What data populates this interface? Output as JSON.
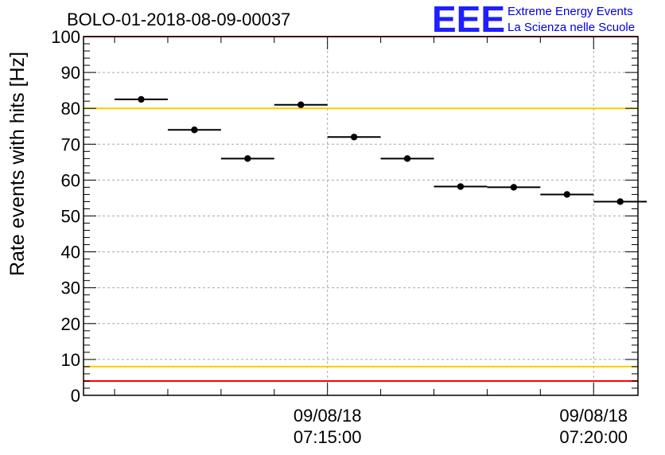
{
  "logo": {
    "mark": "EEE",
    "line1": "Extreme Energy Events",
    "line2": "La Scienza nelle Scuole",
    "color": "#1f1fff"
  },
  "chart_data": {
    "type": "scatter",
    "title": "BOLO-01-2018-08-09-00037",
    "xlabel": "",
    "ylabel": "Rate events with hits [Hz]",
    "ylim": [
      0,
      100
    ],
    "yticks": [
      0,
      10,
      20,
      30,
      40,
      50,
      60,
      70,
      80,
      90,
      100
    ],
    "grid": true,
    "x_tick_labels": [
      {
        "date": "09/08/18",
        "time": "07:15:00"
      },
      {
        "date": "09/08/18",
        "time": "07:20:00"
      }
    ],
    "series": [
      {
        "points": [
          {
            "t_start": "07:11:00",
            "t_end": "07:12:00",
            "y": 82.5,
            "err": 0.6
          },
          {
            "t_start": "07:12:00",
            "t_end": "07:13:00",
            "y": 74.0,
            "err": 0.5
          },
          {
            "t_start": "07:13:00",
            "t_end": "07:14:00",
            "y": 66.0,
            "err": 0.5
          },
          {
            "t_start": "07:14:00",
            "t_end": "07:15:00",
            "y": 81.0,
            "err": 0.6
          },
          {
            "t_start": "07:15:00",
            "t_end": "07:16:00",
            "y": 72.0,
            "err": 0.5
          },
          {
            "t_start": "07:16:00",
            "t_end": "07:17:00",
            "y": 66.0,
            "err": 0.5
          },
          {
            "t_start": "07:17:00",
            "t_end": "07:18:00",
            "y": 58.2,
            "err": 0.5
          },
          {
            "t_start": "07:18:00",
            "t_end": "07:19:00",
            "y": 58.0,
            "err": 0.5
          },
          {
            "t_start": "07:19:00",
            "t_end": "07:20:00",
            "y": 56.0,
            "err": 0.5
          },
          {
            "t_start": "07:20:00",
            "t_end": "07:21:00",
            "y": 54.0,
            "err": 0.5
          }
        ]
      }
    ],
    "reference_lines": [
      {
        "y": 100,
        "color": "#ff0000"
      },
      {
        "y": 80,
        "color": "#ffcc00"
      },
      {
        "y": 8,
        "color": "#ffcc00"
      },
      {
        "y": 4,
        "color": "#ff0000"
      }
    ]
  }
}
